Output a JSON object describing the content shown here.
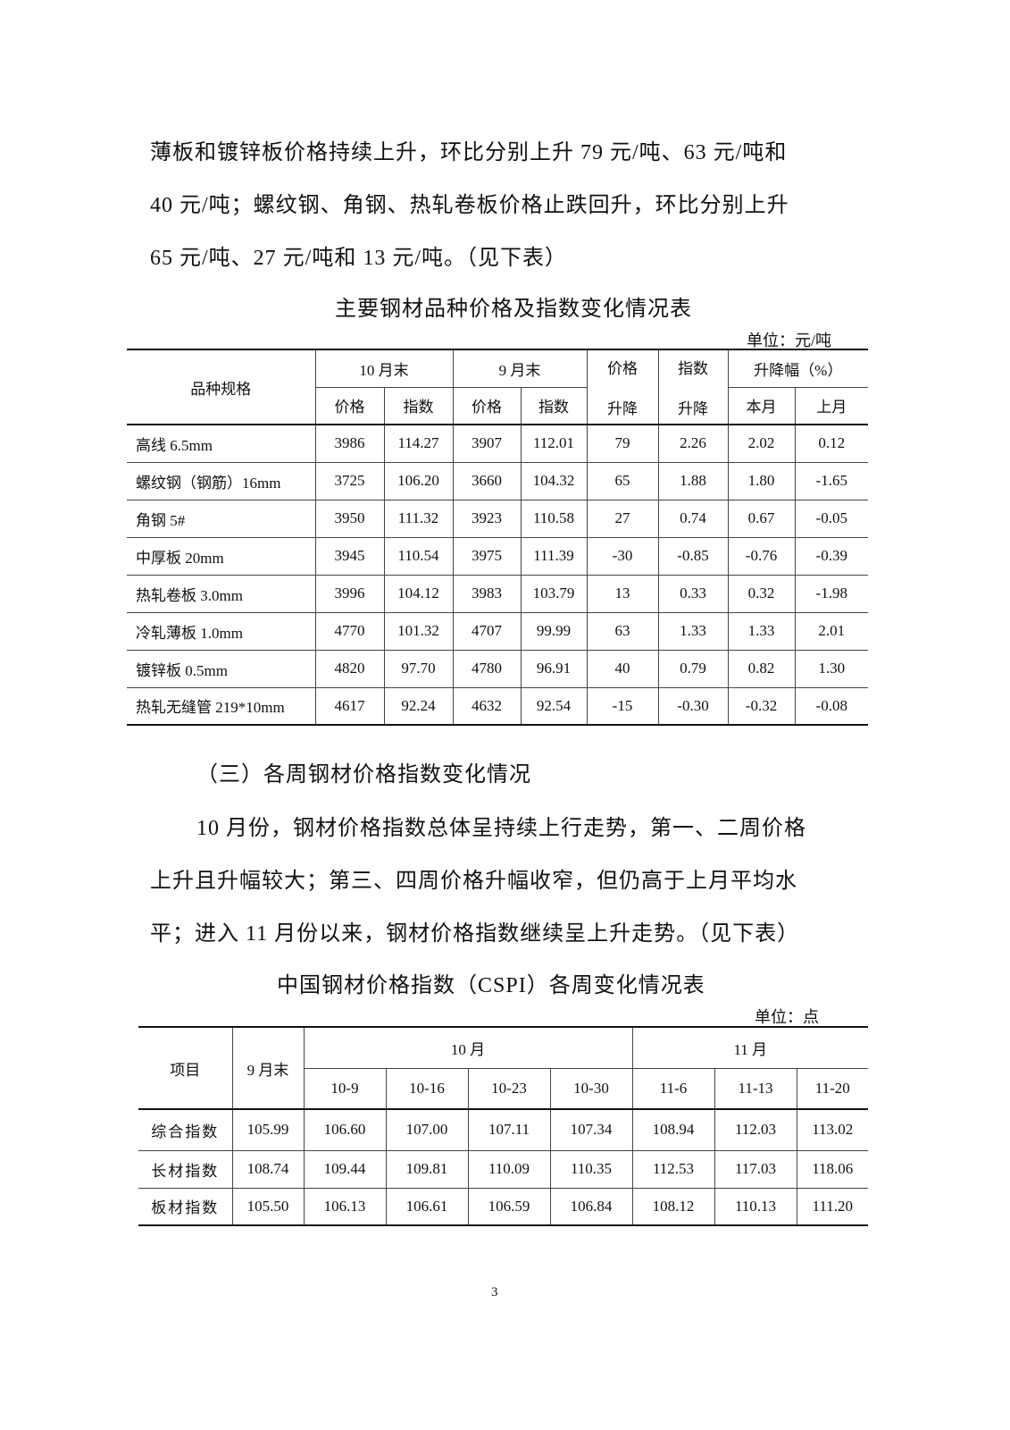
{
  "intro_lines": [
    "薄板和镀锌板价格持续上升，环比分别上升 79 元/吨、63 元/吨和",
    "40 元/吨；螺纹钢、角钢、热轧卷板价格止跌回升，环比分别上升",
    "65 元/吨、27 元/吨和 13 元/吨。（见下表）"
  ],
  "table1": {
    "title": "主要钢材品种价格及指数变化情况表",
    "unit": "单位：元/吨",
    "headers": {
      "spec": "品种规格",
      "oct_end": "10 月末",
      "sep_end": "9 月末",
      "price_change_1": "价格",
      "price_change_2": "升降",
      "index_change_1": "指数",
      "index_change_2": "升降",
      "pct": "升降幅（%）",
      "price": "价格",
      "index": "指数",
      "this_month": "本月",
      "last_month": "上月"
    },
    "rows": [
      [
        "高线 6.5mm",
        "3986",
        "114.27",
        "3907",
        "112.01",
        "79",
        "2.26",
        "2.02",
        "0.12"
      ],
      [
        "螺纹钢（钢筋）16mm",
        "3725",
        "106.20",
        "3660",
        "104.32",
        "65",
        "1.88",
        "1.80",
        "-1.65"
      ],
      [
        "角钢 5#",
        "3950",
        "111.32",
        "3923",
        "110.58",
        "27",
        "0.74",
        "0.67",
        "-0.05"
      ],
      [
        "中厚板 20mm",
        "3945",
        "110.54",
        "3975",
        "111.39",
        "-30",
        "-0.85",
        "-0.76",
        "-0.39"
      ],
      [
        "热轧卷板 3.0mm",
        "3996",
        "104.12",
        "3983",
        "103.79",
        "13",
        "0.33",
        "0.32",
        "-1.98"
      ],
      [
        "冷轧薄板 1.0mm",
        "4770",
        "101.32",
        "4707",
        "99.99",
        "63",
        "1.33",
        "1.33",
        "2.01"
      ],
      [
        "镀锌板 0.5mm",
        "4820",
        "97.70",
        "4780",
        "96.91",
        "40",
        "0.79",
        "0.82",
        "1.30"
      ],
      [
        "热轧无缝管 219*10mm",
        "4617",
        "92.24",
        "4632",
        "92.54",
        "-15",
        "-0.30",
        "-0.32",
        "-0.08"
      ]
    ]
  },
  "section_heading": "（三）各周钢材价格指数变化情况",
  "para_lines": [
    "10 月份，钢材价格指数总体呈持续上行走势，第一、二周价格",
    "上升且升幅较大；第三、四周价格升幅收窄，但仍高于上月平均水",
    "平；进入 11 月份以来，钢材价格指数继续呈上升走势。（见下表）"
  ],
  "table2": {
    "title": "中国钢材价格指数（CSPI）各周变化情况表",
    "unit": "单位：点",
    "headers": {
      "item": "项目",
      "sep_end": "9 月末",
      "oct": "10 月",
      "nov": "11 月",
      "weeks": [
        "10-9",
        "10-16",
        "10-23",
        "10-30",
        "11-6",
        "11-13",
        "11-20"
      ]
    },
    "rows": [
      [
        "综合指数",
        "105.99",
        "106.60",
        "107.00",
        "107.11",
        "107.34",
        "108.94",
        "112.03",
        "113.02"
      ],
      [
        "长材指数",
        "108.74",
        "109.44",
        "109.81",
        "110.09",
        "110.35",
        "112.53",
        "117.03",
        "118.06"
      ],
      [
        "板材指数",
        "105.50",
        "106.13",
        "106.61",
        "106.59",
        "106.84",
        "108.12",
        "110.13",
        "111.20"
      ]
    ]
  },
  "page_number": "3"
}
